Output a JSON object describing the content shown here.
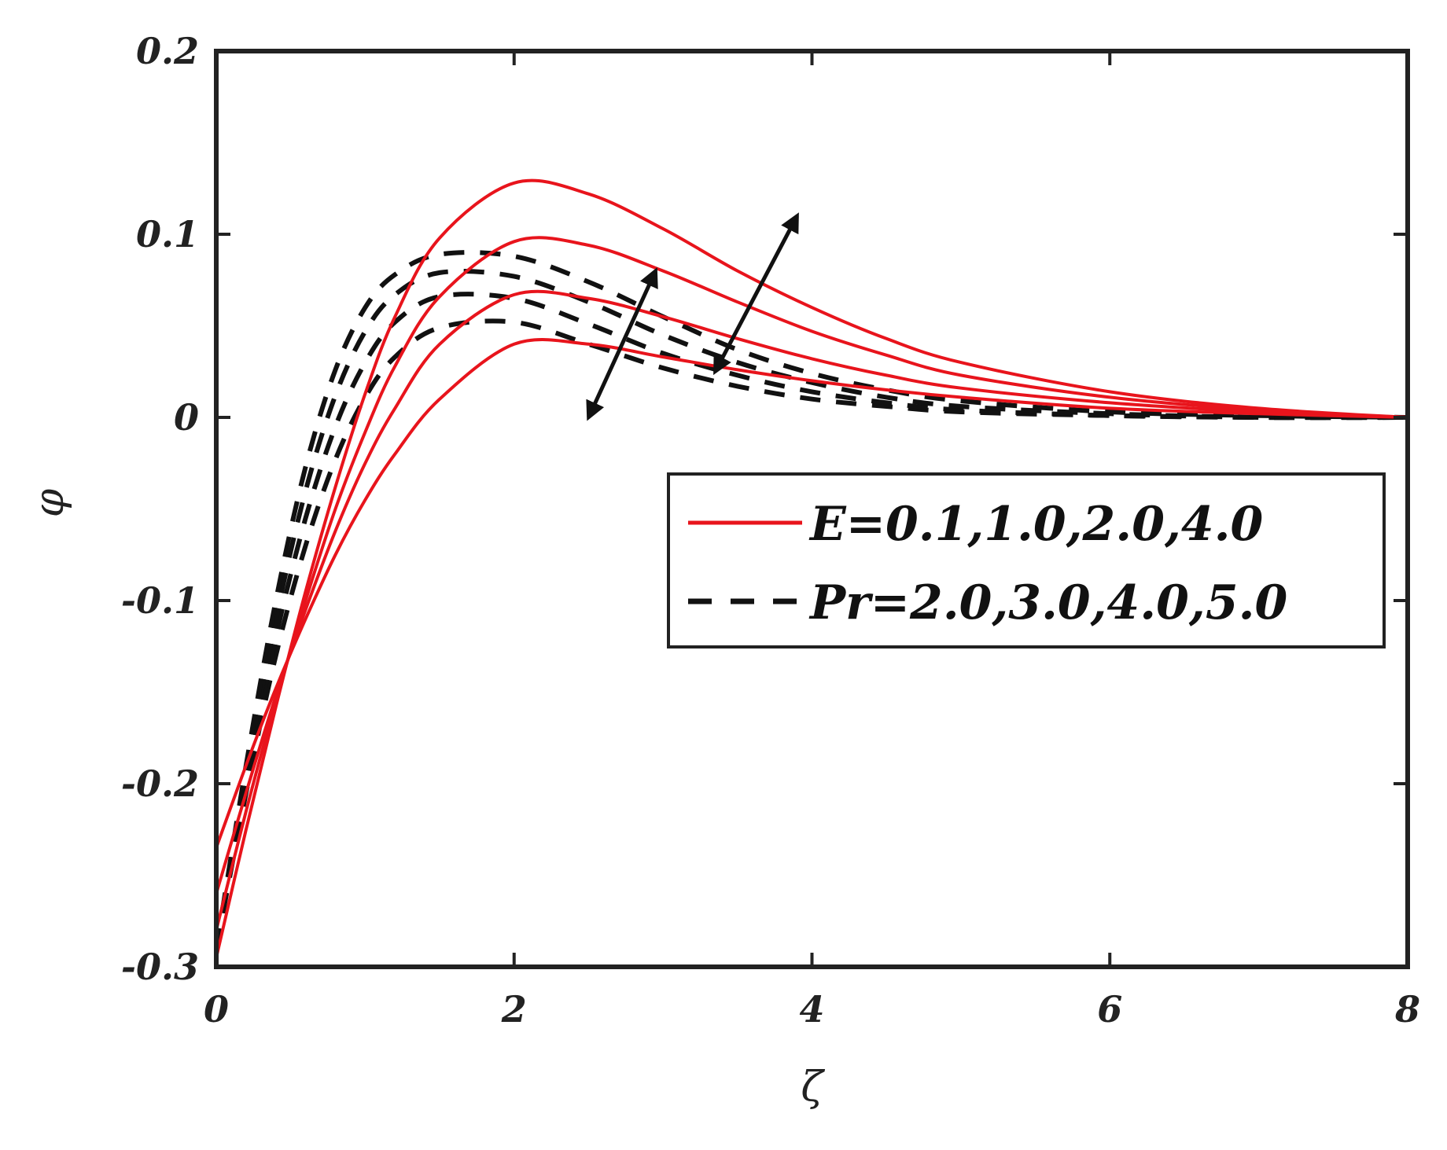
{
  "chart_data": {
    "type": "line",
    "xlabel": "ζ",
    "ylabel": "φ",
    "xlim": [
      0,
      8
    ],
    "ylim": [
      -0.3,
      0.2
    ],
    "xticks": [
      "0",
      "2",
      "4",
      "6",
      "8"
    ],
    "yticks": [
      "-0.3",
      "-0.2",
      "-0.1",
      "0",
      "0.1",
      "0.2"
    ],
    "grid": false,
    "legend_position": "right-middle",
    "legend": [
      {
        "label": "E=0.1,1.0,2.0,4.0",
        "color": "#e8141c",
        "style": "solid"
      },
      {
        "label": "Pr=2.0,3.0,4.0,5.0",
        "color": "#111111",
        "style": "dashed"
      }
    ],
    "groups": [
      {
        "style": "solid",
        "color": "#e8141c",
        "series": [
          {
            "x": [
              0,
              0.2,
              0.4,
              0.6,
              0.8,
              1.0,
              1.2,
              1.5,
              2.0,
              2.5,
              3.0,
              3.5,
              4.0,
              4.5,
              5.0,
              6.0,
              7.0,
              8.0
            ],
            "y": [
              -0.235,
              -0.19,
              -0.148,
              -0.11,
              -0.075,
              -0.045,
              -0.02,
              0.01,
              0.04,
              0.04,
              0.033,
              0.026,
              0.02,
              0.015,
              0.011,
              0.005,
              0.002,
              0.0
            ]
          },
          {
            "x": [
              0,
              0.2,
              0.4,
              0.6,
              0.8,
              1.0,
              1.2,
              1.5,
              2.0,
              2.5,
              3.0,
              3.5,
              4.0,
              4.5,
              5.0,
              6.0,
              7.0,
              8.0
            ],
            "y": [
              -0.26,
              -0.205,
              -0.152,
              -0.105,
              -0.062,
              -0.025,
              0.005,
              0.04,
              0.067,
              0.065,
              0.055,
              0.043,
              0.032,
              0.023,
              0.016,
              0.008,
              0.003,
              0.0
            ]
          },
          {
            "x": [
              0,
              0.2,
              0.4,
              0.6,
              0.8,
              1.0,
              1.2,
              1.5,
              2.0,
              2.5,
              3.0,
              3.5,
              4.0,
              4.5,
              5.0,
              6.0,
              7.0,
              8.0
            ],
            "y": [
              -0.28,
              -0.215,
              -0.155,
              -0.1,
              -0.05,
              -0.008,
              0.028,
              0.066,
              0.096,
              0.094,
              0.08,
              0.063,
              0.047,
              0.034,
              0.023,
              0.011,
              0.004,
              0.0
            ]
          },
          {
            "x": [
              0,
              0.2,
              0.4,
              0.6,
              0.8,
              1.0,
              1.2,
              1.5,
              2.0,
              2.5,
              3.0,
              3.5,
              4.0,
              4.5,
              5.0,
              6.0,
              7.0,
              8.0
            ],
            "y": [
              -0.295,
              -0.225,
              -0.158,
              -0.095,
              -0.038,
              0.013,
              0.055,
              0.098,
              0.128,
              0.122,
              0.103,
              0.08,
              0.06,
              0.043,
              0.03,
              0.014,
              0.005,
              0.0
            ]
          }
        ]
      },
      {
        "style": "dashed",
        "color": "#111111",
        "series": [
          {
            "x": [
              0,
              0.2,
              0.4,
              0.6,
              0.8,
              1.0,
              1.2,
              1.5,
              2.0,
              2.5,
              3.0,
              3.5,
              4.0,
              4.5,
              5.0,
              6.0,
              7.0,
              8.0
            ],
            "y": [
              -0.29,
              -0.205,
              -0.13,
              -0.07,
              -0.023,
              0.011,
              0.033,
              0.049,
              0.052,
              0.04,
              0.027,
              0.017,
              0.01,
              0.006,
              0.003,
              0.001,
              0.0,
              0.0
            ]
          },
          {
            "x": [
              0,
              0.2,
              0.4,
              0.6,
              0.8,
              1.0,
              1.2,
              1.5,
              2.0,
              2.5,
              3.0,
              3.5,
              4.0,
              4.5,
              5.0,
              6.0,
              7.0,
              8.0
            ],
            "y": [
              -0.29,
              -0.2,
              -0.12,
              -0.055,
              -0.005,
              0.03,
              0.052,
              0.066,
              0.065,
              0.051,
              0.035,
              0.023,
              0.014,
              0.008,
              0.004,
              0.001,
              0.0,
              0.0
            ]
          },
          {
            "x": [
              0,
              0.2,
              0.4,
              0.6,
              0.8,
              1.0,
              1.2,
              1.5,
              2.0,
              2.5,
              3.0,
              3.5,
              4.0,
              4.5,
              5.0,
              6.0,
              7.0,
              8.0
            ],
            "y": [
              -0.29,
              -0.195,
              -0.11,
              -0.04,
              0.012,
              0.047,
              0.067,
              0.079,
              0.077,
              0.063,
              0.045,
              0.03,
              0.019,
              0.011,
              0.006,
              0.002,
              0.0,
              0.0
            ]
          },
          {
            "x": [
              0,
              0.2,
              0.4,
              0.6,
              0.8,
              1.0,
              1.2,
              1.5,
              2.0,
              2.5,
              3.0,
              3.5,
              4.0,
              4.5,
              5.0,
              6.0,
              7.0,
              8.0
            ],
            "y": [
              -0.29,
              -0.19,
              -0.1,
              -0.027,
              0.026,
              0.06,
              0.078,
              0.089,
              0.088,
              0.074,
              0.055,
              0.037,
              0.024,
              0.015,
              0.009,
              0.003,
              0.001,
              0.0
            ]
          }
        ]
      }
    ],
    "annotations": [
      {
        "type": "double-arrow",
        "from": [
          2.5,
          0.0
        ],
        "to": [
          2.95,
          0.08
        ],
        "meaning": "Pr increasing"
      },
      {
        "type": "double-arrow",
        "from": [
          3.35,
          0.025
        ],
        "to": [
          3.9,
          0.11
        ],
        "meaning": "E increasing"
      }
    ]
  }
}
